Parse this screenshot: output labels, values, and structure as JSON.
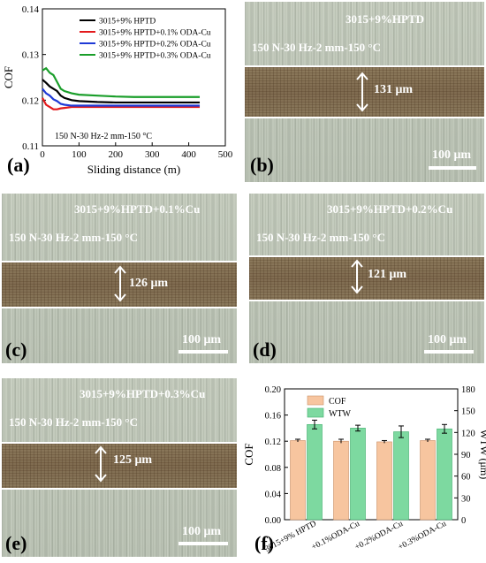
{
  "chart_data": [
    {
      "type": "line",
      "panel": "(a)",
      "xlabel": "Sliding distance (m)",
      "ylabel": "COF",
      "xlim": [
        0,
        500
      ],
      "ylim": [
        0.11,
        0.14
      ],
      "xticks": [
        "0",
        "100",
        "200",
        "300",
        "400",
        "500"
      ],
      "yticks": [
        "0.11",
        "0.12",
        "0.13",
        "0.14"
      ],
      "annotation": "150 N-30 Hz-2 mm-150 °C",
      "legend_position": "top-right",
      "series": [
        {
          "name": "3015+9% HPTD",
          "color": "#000000",
          "x": [
            0,
            10,
            20,
            30,
            40,
            50,
            60,
            80,
            100,
            150,
            200,
            250,
            300,
            350,
            400,
            430
          ],
          "y": [
            0.1245,
            0.1238,
            0.123,
            0.1225,
            0.122,
            0.121,
            0.1205,
            0.12,
            0.1198,
            0.1196,
            0.1195,
            0.1195,
            0.1195,
            0.1195,
            0.1195,
            0.1195
          ]
        },
        {
          "name": "3015+9% HPTD+0.1% ODA-Cu",
          "color": "#e31a1c",
          "x": [
            0,
            10,
            20,
            30,
            40,
            50,
            60,
            80,
            100,
            150,
            200,
            250,
            300,
            350,
            400,
            430
          ],
          "y": [
            0.1205,
            0.119,
            0.1185,
            0.118,
            0.118,
            0.1182,
            0.1183,
            0.1185,
            0.1185,
            0.1185,
            0.1185,
            0.1185,
            0.1185,
            0.1185,
            0.1185,
            0.1185
          ]
        },
        {
          "name": "3015+9% HPTD+0.2% ODA-Cu",
          "color": "#1f3ad6",
          "x": [
            0,
            10,
            20,
            30,
            40,
            50,
            60,
            80,
            100,
            150,
            200,
            250,
            300,
            350,
            400,
            430
          ],
          "y": [
            0.1225,
            0.1215,
            0.121,
            0.1202,
            0.1198,
            0.1192,
            0.119,
            0.1188,
            0.1188,
            0.1188,
            0.1188,
            0.1188,
            0.1188,
            0.1188,
            0.1188,
            0.1188
          ]
        },
        {
          "name": "3015+9% HPTD+0.3% ODA-Cu",
          "color": "#1a9e2a",
          "x": [
            0,
            10,
            20,
            30,
            40,
            50,
            60,
            80,
            100,
            150,
            200,
            250,
            300,
            350,
            400,
            430
          ],
          "y": [
            0.1265,
            0.127,
            0.126,
            0.1255,
            0.124,
            0.1225,
            0.122,
            0.1215,
            0.1212,
            0.121,
            0.1208,
            0.1207,
            0.1207,
            0.1207,
            0.1207,
            0.1207
          ]
        }
      ]
    },
    {
      "type": "bar",
      "panel": "(f)",
      "categories": [
        "3015+9% HPTD",
        "+0.1%ODA-Cu",
        "+0.2%ODA-Cu",
        "+0.3%ODA-Cu"
      ],
      "ylabel": "COF",
      "y2label": "WTW (μm)",
      "ylim": [
        0.0,
        0.2
      ],
      "y2lim": [
        0,
        180
      ],
      "yticks": [
        "0.00",
        "0.04",
        "0.08",
        "0.12",
        "0.16",
        "0.20"
      ],
      "y2ticks": [
        "0",
        "30",
        "60",
        "90",
        "120",
        "150",
        "180"
      ],
      "legend_position": "top-left",
      "series": [
        {
          "name": "COF",
          "axis": "left",
          "color": "#f7c59f",
          "values": [
            0.121,
            0.12,
            0.119,
            0.121
          ],
          "errors": [
            0.002,
            0.003,
            0.002,
            0.002
          ]
        },
        {
          "name": "WTW",
          "axis": "right",
          "color": "#7dd9a0",
          "values": [
            131,
            126,
            121,
            125
          ],
          "errors": [
            6,
            4,
            8,
            6
          ]
        }
      ]
    }
  ],
  "panels": {
    "a_label": "(a)",
    "b": {
      "label": "(b)",
      "title": "3015+9%HPTD",
      "condition": "150 N-30 Hz-2 mm-150 °C",
      "width": "131 μm",
      "scale": "100 μm"
    },
    "c": {
      "label": "(c)",
      "title": "3015+9%HPTD+0.1%Cu",
      "condition": "150 N-30 Hz-2 mm-150 °C",
      "width": "126 μm",
      "scale": "100 μm"
    },
    "d": {
      "label": "(d)",
      "title": "3015+9%HPTD+0.2%Cu",
      "condition": "150 N-30 Hz-2 mm-150 °C",
      "width": "121 μm",
      "scale": "100 μm"
    },
    "e": {
      "label": "(e)",
      "title": "3015+9%HPTD+0.3%Cu",
      "condition": "150 N-30 Hz-2 mm-150 °C",
      "width": "125 μm",
      "scale": "100 μm"
    },
    "f_label": "(f)"
  },
  "colors": {
    "track": "#7f6b50",
    "background": "#c2c9bb"
  }
}
